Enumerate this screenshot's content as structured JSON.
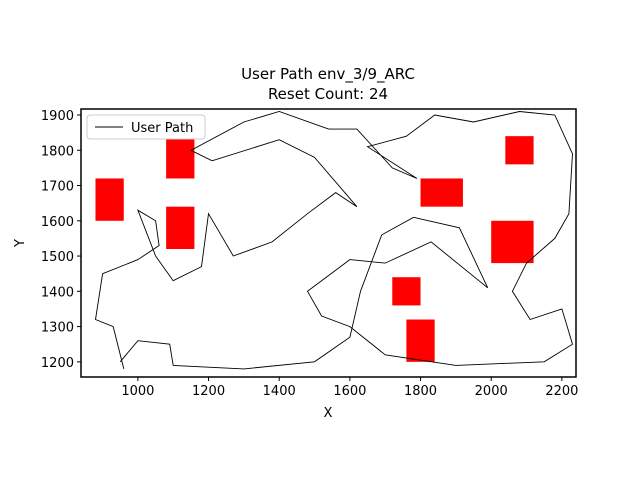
{
  "chart_data": {
    "type": "line",
    "title": "User Path env_3/9_ARC",
    "subtitle": "Reset Count: 24",
    "x_label": "X",
    "y_label": "Y",
    "xlim": [
      839,
      2240
    ],
    "ylim": [
      1157,
      1917
    ],
    "xticks": [
      1000,
      1200,
      1400,
      1600,
      1800,
      2000,
      2200
    ],
    "yticks": [
      1200,
      1300,
      1400,
      1500,
      1600,
      1700,
      1800,
      1900
    ],
    "grid": false,
    "legend": "upper-left",
    "obstacle_color": "#ff0000",
    "obstacles": [
      {
        "x": 880,
        "y": 1600,
        "width": 80,
        "height": 120
      },
      {
        "x": 1080,
        "y": 1720,
        "width": 80,
        "height": 120
      },
      {
        "x": 1080,
        "y": 1520,
        "width": 80,
        "height": 120
      },
      {
        "x": 1800,
        "y": 1640,
        "width": 120,
        "height": 80
      },
      {
        "x": 2040,
        "y": 1760,
        "width": 80,
        "height": 80
      },
      {
        "x": 2000,
        "y": 1480,
        "width": 120,
        "height": 120
      },
      {
        "x": 1720,
        "y": 1360,
        "width": 80,
        "height": 80
      },
      {
        "x": 1760,
        "y": 1200,
        "width": 80,
        "height": 120
      }
    ],
    "series": [
      {
        "name": "User Path",
        "color": "#000000",
        "x": [
          960,
          930,
          880,
          900,
          1000,
          1060,
          1050,
          1000,
          1050,
          1100,
          1180,
          1200,
          1270,
          1380,
          1480,
          1560,
          1620,
          1500,
          1400,
          1210,
          1150,
          1300,
          1400,
          1540,
          1620,
          1720,
          1790,
          1650,
          1760,
          1840,
          1950,
          2080,
          2180,
          2230,
          2220,
          2180,
          2100,
          2060,
          2110,
          2200,
          2230,
          2150,
          1900,
          1700,
          1600,
          1520,
          1480,
          1600,
          1700,
          1830,
          1990,
          1910,
          1780,
          1690,
          1630,
          1600,
          1500,
          1300,
          1100,
          1090,
          1000,
          950
        ],
        "y": [
          1180,
          1300,
          1320,
          1450,
          1490,
          1530,
          1600,
          1630,
          1500,
          1430,
          1470,
          1620,
          1500,
          1540,
          1620,
          1680,
          1640,
          1780,
          1830,
          1770,
          1800,
          1880,
          1910,
          1860,
          1860,
          1750,
          1720,
          1810,
          1840,
          1900,
          1880,
          1910,
          1900,
          1790,
          1620,
          1550,
          1480,
          1400,
          1320,
          1350,
          1250,
          1200,
          1190,
          1220,
          1300,
          1330,
          1400,
          1490,
          1480,
          1540,
          1410,
          1580,
          1610,
          1560,
          1400,
          1270,
          1200,
          1180,
          1190,
          1250,
          1260,
          1200
        ]
      }
    ]
  }
}
